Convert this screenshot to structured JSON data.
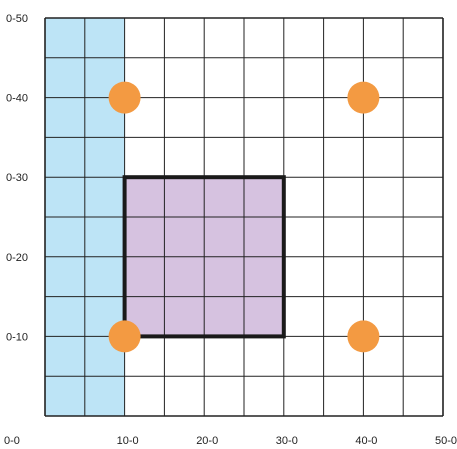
{
  "chart_data": {
    "type": "grid-diagram",
    "grid": {
      "xlim": [
        0,
        50
      ],
      "ylim": [
        0,
        50
      ],
      "cell_size": 5
    },
    "x_tick_labels": [
      {
        "value": 0,
        "label": "0-0"
      },
      {
        "value": 10,
        "label": "10-0"
      },
      {
        "value": 20,
        "label": "20-0"
      },
      {
        "value": 30,
        "label": "30-0"
      },
      {
        "value": 40,
        "label": "40-0"
      },
      {
        "value": 50,
        "label": "50-0"
      }
    ],
    "y_tick_labels": [
      {
        "value": 10,
        "label": "0-10"
      },
      {
        "value": 20,
        "label": "0-20"
      },
      {
        "value": 30,
        "label": "0-30"
      },
      {
        "value": 40,
        "label": "0-40"
      },
      {
        "value": 50,
        "label": "0-50"
      }
    ],
    "strip": {
      "x_from": 0,
      "x_to": 10,
      "y_from": 0,
      "y_to": 50
    },
    "square": {
      "x_from": 10,
      "x_to": 30,
      "y_from": 10,
      "y_to": 30
    },
    "points": [
      {
        "x": 10,
        "y": 40
      },
      {
        "x": 40,
        "y": 40
      },
      {
        "x": 10,
        "y": 10
      },
      {
        "x": 40,
        "y": 10
      }
    ],
    "colors": {
      "strip": "#bde4f6",
      "square": "#d6c2e0",
      "point": "#f39a42",
      "grid_line": "#222222",
      "square_border": "#1a1a1a"
    }
  }
}
